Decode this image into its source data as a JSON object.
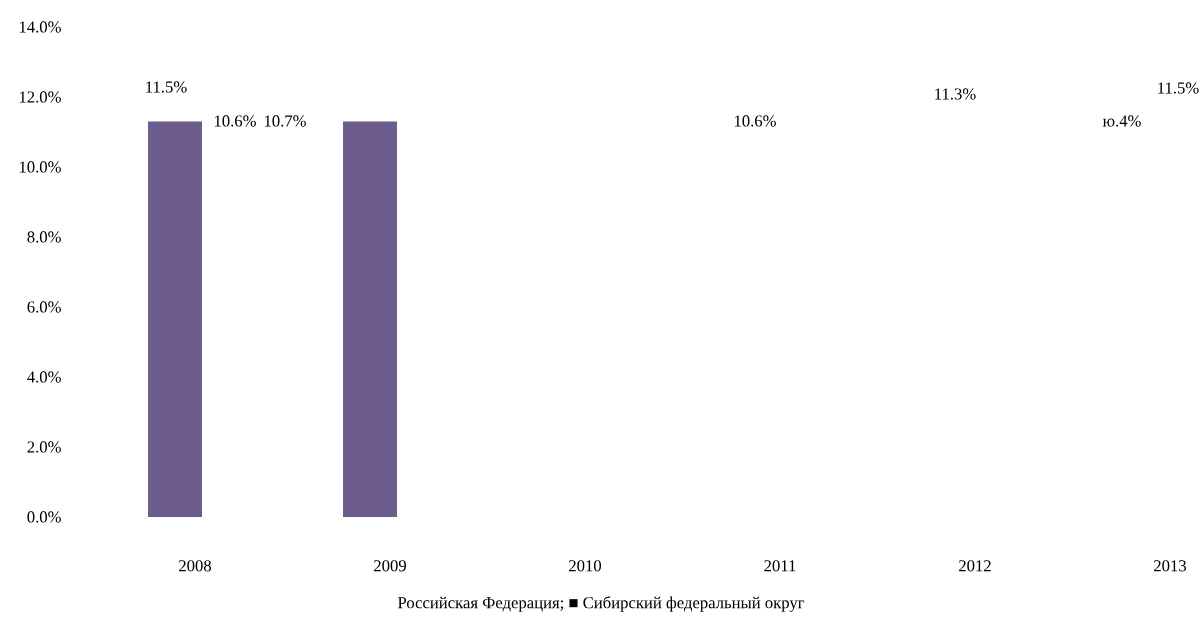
{
  "chart_data": {
    "type": "bar",
    "categories": [
      "2008",
      "2009",
      "2010",
      "2011",
      "2012",
      "2013"
    ],
    "values": [
      11.3,
      11.3,
      null,
      null,
      null,
      null
    ],
    "color": "#6d5c8e",
    "ylim": [
      0,
      14
    ],
    "yticks": [
      {
        "value": 0,
        "label": "0.0%"
      },
      {
        "value": 2,
        "label": "2.0%"
      },
      {
        "value": 4,
        "label": "4.0%"
      },
      {
        "value": 6,
        "label": "6.0%"
      },
      {
        "value": 8,
        "label": "8.0%"
      },
      {
        "value": 10,
        "label": "10.0%"
      },
      {
        "value": 12,
        "label": "12.0%"
      },
      {
        "value": 14,
        "label": "14.0%"
      }
    ],
    "grid": false,
    "annotations": [
      "11.5%",
      "10.6%",
      "10.7%",
      "10.6%",
      "11.3%",
      "11.5%",
      "ю.4%",
      "Российская Федерация; ■ Сибирский федеральный округ"
    ]
  }
}
